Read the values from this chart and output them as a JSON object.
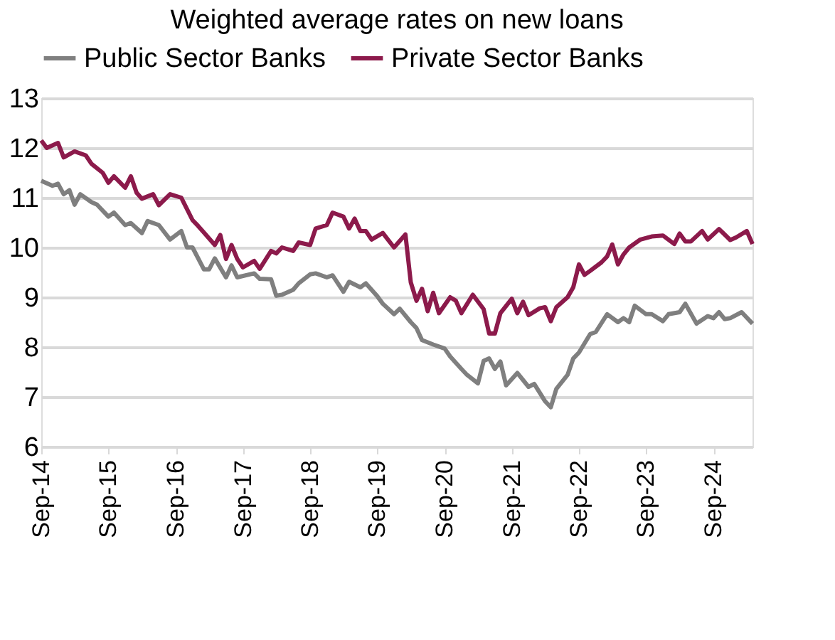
{
  "chart_data": {
    "type": "line",
    "title": "Weighted average rates on new loans",
    "xlim": [
      "2014-09",
      "2025-04"
    ],
    "ylim": [
      6,
      13
    ],
    "yticks": [
      6,
      7,
      8,
      9,
      10,
      11,
      12,
      13
    ],
    "xticks": [
      {
        "value": "2014-09",
        "label": "Sep-14"
      },
      {
        "value": "2015-09",
        "label": "Sep-15"
      },
      {
        "value": "2016-09",
        "label": "Sep-16"
      },
      {
        "value": "2017-09",
        "label": "Sep-17"
      },
      {
        "value": "2018-09",
        "label": "Sep-18"
      },
      {
        "value": "2019-09",
        "label": "Sep-19"
      },
      {
        "value": "2020-09",
        "label": "Sep-20"
      },
      {
        "value": "2021-09",
        "label": "Sep-21"
      },
      {
        "value": "2022-09",
        "label": "Sep-22"
      },
      {
        "value": "2023-09",
        "label": "Sep-23"
      },
      {
        "value": "2024-09",
        "label": "Sep-24"
      }
    ],
    "grid": "y",
    "legend": "top",
    "marker": "none",
    "line_style": "solid",
    "series": [
      {
        "name": "Public Sector Banks",
        "color": "#7f7f7f",
        "x": [
          "2014-09",
          "2014-11",
          "2014-12",
          "2015-01",
          "2015-02",
          "2015-03",
          "2015-04",
          "2015-06",
          "2015-07",
          "2015-09",
          "2015-10",
          "2015-12",
          "2016-01",
          "2016-03",
          "2016-04",
          "2016-06",
          "2016-08",
          "2016-10",
          "2016-11",
          "2016-12",
          "2017-02",
          "2017-03",
          "2017-04",
          "2017-06",
          "2017-07",
          "2017-08",
          "2017-11",
          "2017-12",
          "2018-02",
          "2018-03",
          "2018-04",
          "2018-06",
          "2018-07",
          "2018-09",
          "2018-10",
          "2018-12",
          "2019-01",
          "2019-03",
          "2019-04",
          "2019-06",
          "2019-07",
          "2019-09",
          "2019-10",
          "2019-12",
          "2020-01",
          "2020-03",
          "2020-04",
          "2020-05",
          "2020-07",
          "2020-09",
          "2020-10",
          "2020-12",
          "2021-01",
          "2021-03",
          "2021-04",
          "2021-05",
          "2021-06",
          "2021-07",
          "2021-08",
          "2021-10",
          "2021-12",
          "2022-01",
          "2022-03",
          "2022-04",
          "2022-05",
          "2022-07",
          "2022-08",
          "2022-09",
          "2022-11",
          "2022-12",
          "2023-02",
          "2023-04",
          "2023-05",
          "2023-06",
          "2023-07",
          "2023-09",
          "2023-10",
          "2023-12",
          "2024-01",
          "2024-03",
          "2024-04",
          "2024-06",
          "2024-08",
          "2024-09",
          "2024-10",
          "2024-11",
          "2024-12",
          "2025-02",
          "2025-04"
        ],
        "values": [
          11.34,
          11.24,
          11.28,
          11.07,
          11.15,
          10.86,
          11.07,
          10.91,
          10.86,
          10.62,
          10.7,
          10.45,
          10.49,
          10.29,
          10.53,
          10.45,
          10.16,
          10.33,
          10.0,
          10.0,
          9.56,
          9.56,
          9.78,
          9.4,
          9.64,
          9.4,
          9.48,
          9.37,
          9.36,
          9.03,
          9.05,
          9.15,
          9.28,
          9.46,
          9.48,
          9.4,
          9.44,
          9.11,
          9.31,
          9.2,
          9.28,
          9.02,
          8.87,
          8.66,
          8.77,
          8.5,
          8.38,
          8.14,
          8.05,
          7.97,
          7.81,
          7.56,
          7.44,
          7.27,
          7.72,
          7.77,
          7.56,
          7.71,
          7.23,
          7.48,
          7.2,
          7.26,
          6.91,
          6.79,
          7.16,
          7.44,
          7.77,
          7.89,
          8.26,
          8.3,
          8.66,
          8.5,
          8.58,
          8.5,
          8.83,
          8.66,
          8.66,
          8.52,
          8.66,
          8.7,
          8.87,
          8.47,
          8.62,
          8.58,
          8.7,
          8.56,
          8.58,
          8.7,
          8.47
        ]
      },
      {
        "name": "Private Sector Banks",
        "color": "#8c1a4b",
        "x": [
          "2014-09",
          "2014-10",
          "2014-12",
          "2015-01",
          "2015-03",
          "2015-05",
          "2015-06",
          "2015-08",
          "2015-09",
          "2015-10",
          "2015-12",
          "2016-01",
          "2016-02",
          "2016-03",
          "2016-05",
          "2016-06",
          "2016-08",
          "2016-10",
          "2016-12",
          "2017-01",
          "2017-02",
          "2017-04",
          "2017-05",
          "2017-06",
          "2017-07",
          "2017-08",
          "2017-09",
          "2017-11",
          "2017-12",
          "2018-02",
          "2018-03",
          "2018-04",
          "2018-06",
          "2018-07",
          "2018-09",
          "2018-10",
          "2018-12",
          "2019-01",
          "2019-03",
          "2019-04",
          "2019-05",
          "2019-06",
          "2019-07",
          "2019-08",
          "2019-10",
          "2019-12",
          "2020-02",
          "2020-03",
          "2020-04",
          "2020-05",
          "2020-06",
          "2020-07",
          "2020-08",
          "2020-10",
          "2020-11",
          "2020-12",
          "2021-02",
          "2021-04",
          "2021-05",
          "2021-06",
          "2021-07",
          "2021-09",
          "2021-10",
          "2021-11",
          "2021-12",
          "2022-02",
          "2022-03",
          "2022-04",
          "2022-05",
          "2022-07",
          "2022-08",
          "2022-09",
          "2022-10",
          "2022-11",
          "2023-01",
          "2023-02",
          "2023-03",
          "2023-04",
          "2023-05",
          "2023-06",
          "2023-08",
          "2023-10",
          "2023-12",
          "2024-02",
          "2024-03",
          "2024-04",
          "2024-05",
          "2024-07",
          "2024-08",
          "2024-10",
          "2024-12",
          "2025-01",
          "2025-03",
          "2025-04"
        ],
        "values": [
          12.15,
          12.0,
          12.1,
          11.81,
          11.93,
          11.85,
          11.68,
          11.5,
          11.3,
          11.43,
          11.2,
          11.43,
          11.1,
          10.98,
          11.07,
          10.85,
          11.07,
          11.0,
          10.55,
          10.43,
          10.3,
          10.05,
          10.25,
          9.77,
          10.05,
          9.77,
          9.6,
          9.73,
          9.57,
          9.93,
          9.88,
          10.0,
          9.93,
          10.1,
          10.05,
          10.38,
          10.45,
          10.7,
          10.62,
          10.38,
          10.58,
          10.33,
          10.33,
          10.16,
          10.29,
          10.0,
          10.26,
          9.3,
          8.93,
          9.17,
          8.72,
          9.09,
          8.68,
          9.0,
          8.93,
          8.68,
          9.05,
          8.76,
          8.27,
          8.27,
          8.68,
          8.97,
          8.68,
          8.91,
          8.64,
          8.78,
          8.8,
          8.52,
          8.8,
          9.0,
          9.2,
          9.66,
          9.45,
          9.53,
          9.7,
          9.82,
          10.06,
          9.66,
          9.86,
          10.0,
          10.16,
          10.22,
          10.24,
          10.07,
          10.28,
          10.12,
          10.12,
          10.33,
          10.16,
          10.37,
          10.15,
          10.2,
          10.33,
          10.07
        ]
      }
    ]
  }
}
